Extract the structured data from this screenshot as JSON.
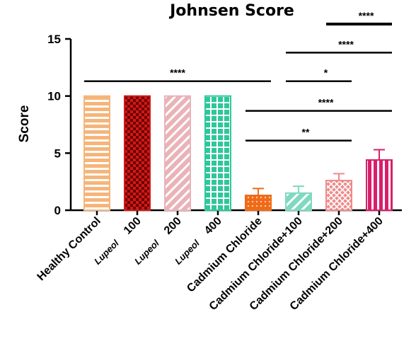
{
  "chart_data": {
    "type": "bar",
    "title": "Johnsen Score",
    "xlabel": "",
    "ylabel": "Score",
    "ylim": [
      0,
      15
    ],
    "yticks": [
      0,
      5,
      10,
      15
    ],
    "grid": false,
    "categories": [
      "Healthy Control",
      "Lupeol 100",
      "Lupeol 200",
      "Lupeol 400",
      "Cadmium Chloride",
      "Cadmium Chloride+100",
      "Cadmium Chloride+200",
      "Cadmium Chloride+400"
    ],
    "category_labels": [
      {
        "text": "Healthy Control",
        "italic_prefix": ""
      },
      {
        "text": "100",
        "italic_prefix": "Lupeol"
      },
      {
        "text": "200",
        "italic_prefix": "Lupeol"
      },
      {
        "text": "400",
        "italic_prefix": "Lupeol"
      },
      {
        "text": "Cadmium Chloride",
        "italic_prefix": ""
      },
      {
        "text": "Cadmium Chloride+100",
        "italic_prefix": ""
      },
      {
        "text": "Cadmium Chloride+200",
        "italic_prefix": ""
      },
      {
        "text": "Cadmium Chloride+400",
        "italic_prefix": ""
      }
    ],
    "values": [
      10,
      10,
      10,
      10,
      1.3,
      1.5,
      2.6,
      4.4
    ],
    "errors": [
      0,
      0,
      0,
      0,
      0.6,
      0.6,
      0.6,
      0.9
    ],
    "bar_styles": [
      {
        "color": "#f5b57a",
        "pattern": "horizontal-stripes"
      },
      {
        "color": "#d01818",
        "pattern": "checker"
      },
      {
        "color": "#e9b3b7",
        "pattern": "diagonal-stripes"
      },
      {
        "color": "#2ec79a",
        "pattern": "grid"
      },
      {
        "color": "#ef6a18",
        "pattern": "dots"
      },
      {
        "color": "#7fd9c0",
        "pattern": "diagonal-stripes"
      },
      {
        "color": "#ef8a8a",
        "pattern": "crosshatch"
      },
      {
        "color": "#d81f6a",
        "pattern": "vertical-stripes"
      }
    ],
    "significance": [
      {
        "from": 0,
        "to": 4,
        "y": 11.3,
        "label": "****"
      },
      {
        "from": 4,
        "to": 6,
        "y": 6.1,
        "label": "**"
      },
      {
        "from": 4,
        "to": 7,
        "y": 8.7,
        "label": "****"
      },
      {
        "from": 5,
        "to": 6,
        "y": 11.3,
        "label": "*"
      },
      {
        "from": 5,
        "to": 7,
        "y": 13.8,
        "label": "****"
      },
      {
        "from": 6,
        "to": 7,
        "y": 16.3,
        "label": "****"
      }
    ]
  }
}
